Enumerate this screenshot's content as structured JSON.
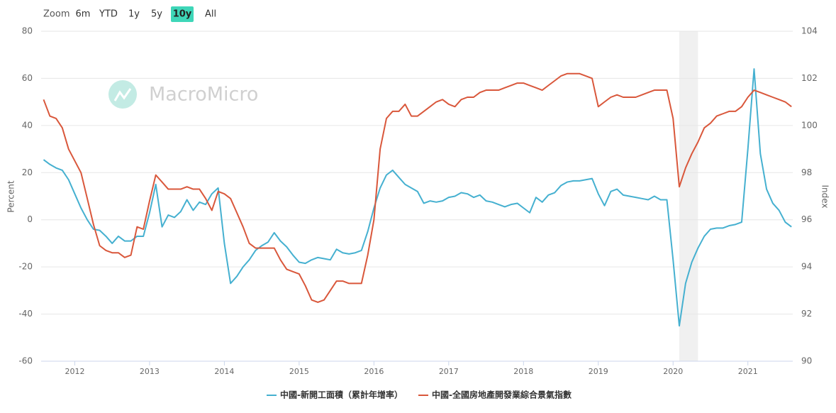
{
  "ui": {
    "zoom_label": "Zoom",
    "zoom_buttons": [
      "6m",
      "YTD",
      "1y",
      "5y",
      "10y",
      "All"
    ],
    "active_button": "10y",
    "watermark": "MacroMicro"
  },
  "chart_data": {
    "type": "line",
    "x": [
      2011.583,
      2011.667,
      2011.75,
      2011.833,
      2011.917,
      2012,
      2012.083,
      2012.167,
      2012.25,
      2012.333,
      2012.417,
      2012.5,
      2012.583,
      2012.667,
      2012.75,
      2012.833,
      2012.917,
      2013,
      2013.083,
      2013.167,
      2013.25,
      2013.333,
      2013.417,
      2013.5,
      2013.583,
      2013.667,
      2013.75,
      2013.833,
      2013.917,
      2014,
      2014.083,
      2014.167,
      2014.25,
      2014.333,
      2014.417,
      2014.5,
      2014.583,
      2014.667,
      2014.75,
      2014.833,
      2014.917,
      2015,
      2015.083,
      2015.167,
      2015.25,
      2015.333,
      2015.417,
      2015.5,
      2015.583,
      2015.667,
      2015.75,
      2015.833,
      2015.917,
      2016,
      2016.083,
      2016.167,
      2016.25,
      2016.333,
      2016.417,
      2016.5,
      2016.583,
      2016.667,
      2016.75,
      2016.833,
      2016.917,
      2017,
      2017.083,
      2017.167,
      2017.25,
      2017.333,
      2017.417,
      2017.5,
      2017.583,
      2017.667,
      2017.75,
      2017.833,
      2017.917,
      2018,
      2018.083,
      2018.167,
      2018.25,
      2018.333,
      2018.417,
      2018.5,
      2018.583,
      2018.667,
      2018.75,
      2018.833,
      2018.917,
      2019,
      2019.083,
      2019.167,
      2019.25,
      2019.333,
      2019.417,
      2019.5,
      2019.583,
      2019.667,
      2019.75,
      2019.833,
      2019.917,
      2020,
      2020.083,
      2020.167,
      2020.25,
      2020.333,
      2020.417,
      2020.5,
      2020.583,
      2020.667,
      2020.75,
      2020.833,
      2020.917,
      2021,
      2021.083,
      2021.167,
      2021.25,
      2021.333,
      2021.417,
      2021.5,
      2021.583
    ],
    "series": [
      {
        "name": "中國-新開工面積（累計年增率）",
        "color": "#45b0d0",
        "values": [
          25.5,
          23.5,
          22,
          21,
          17,
          11,
          5,
          0,
          -4,
          -4.5,
          -7,
          -10,
          -7,
          -9,
          -9,
          -7,
          -7,
          3,
          15,
          -3,
          2,
          1,
          3.5,
          8.5,
          4,
          7.5,
          6.5,
          11,
          13.5,
          -10,
          -27,
          -24,
          -20,
          -17,
          -13,
          -11,
          -9.5,
          -5.5,
          -9,
          -11.5,
          -15,
          -18,
          -18.5,
          -17,
          -16,
          -16.5,
          -17,
          -12.5,
          -14,
          -14.5,
          -14,
          -13,
          -5,
          5,
          13.5,
          19,
          21,
          18,
          15,
          13.5,
          12,
          7,
          8,
          7.5,
          8,
          9.5,
          10,
          11.5,
          11,
          9.5,
          10.5,
          8,
          7.5,
          6.5,
          5.5,
          6.5,
          7,
          5,
          3,
          9.5,
          7.5,
          10.5,
          11.5,
          14.5,
          16,
          16.5,
          16.5,
          17,
          17.5,
          11,
          6,
          12,
          13,
          10.5,
          10,
          9.5,
          9,
          8.5,
          10,
          8.5,
          8.5,
          -17,
          -45,
          -27,
          -18,
          -12,
          -7,
          -4,
          -3.5,
          -3.5,
          -2.5,
          -2,
          -1,
          30,
          64,
          28,
          13,
          7,
          4,
          -1,
          -3
        ]
      },
      {
        "name": "中國-全國房地產開發業綜合景氣指數",
        "color": "#d9573b",
        "axis": "y2",
        "values": [
          101.1,
          100.4,
          100.3,
          99.9,
          99.0,
          98.5,
          98.0,
          96.9,
          95.8,
          94.9,
          94.7,
          94.6,
          94.6,
          94.4,
          94.5,
          95.7,
          95.6,
          96.8,
          97.9,
          97.6,
          97.3,
          97.3,
          97.3,
          97.4,
          97.3,
          97.3,
          96.9,
          96.4,
          97.2,
          97.1,
          96.9,
          96.3,
          95.7,
          95.0,
          94.8,
          94.8,
          94.8,
          94.8,
          94.3,
          93.9,
          93.8,
          93.7,
          93.2,
          92.6,
          92.5,
          92.6,
          93.0,
          93.4,
          93.4,
          93.3,
          93.3,
          93.3,
          94.5,
          96.0,
          99.0,
          100.3,
          100.6,
          100.6,
          100.9,
          100.4,
          100.4,
          100.6,
          100.8,
          101.0,
          101.1,
          100.9,
          100.8,
          101.1,
          101.2,
          101.2,
          101.4,
          101.5,
          101.5,
          101.5,
          101.6,
          101.7,
          101.8,
          101.8,
          101.7,
          101.6,
          101.5,
          101.7,
          101.9,
          102.1,
          102.2,
          102.2,
          102.2,
          102.1,
          102.0,
          100.8,
          101.0,
          101.2,
          101.3,
          101.2,
          101.2,
          101.2,
          101.3,
          101.4,
          101.5,
          101.5,
          101.5,
          100.3,
          97.4,
          98.2,
          98.8,
          99.3,
          99.9,
          100.1,
          100.4,
          100.5,
          100.6,
          100.6,
          100.8,
          101.2,
          101.5,
          101.4,
          101.3,
          101.2,
          101.1,
          101.0,
          100.8
        ]
      }
    ],
    "shaded_range": [
      2020.083,
      2020.333
    ],
    "xlim": [
      2011.55,
      2021.6
    ],
    "xticks": [
      2012,
      2013,
      2014,
      2015,
      2016,
      2017,
      2018,
      2019,
      2020,
      2021
    ],
    "ylim": [
      -60,
      80
    ],
    "yticks": [
      -60,
      -40,
      -20,
      0,
      20,
      40,
      60,
      80
    ],
    "y2lim": [
      90,
      104
    ],
    "y2ticks": [
      90,
      92,
      94,
      96,
      98,
      100,
      102,
      104
    ],
    "ylabel": "Percent",
    "y2label": "Index",
    "grid": true,
    "legend": "bottom"
  }
}
